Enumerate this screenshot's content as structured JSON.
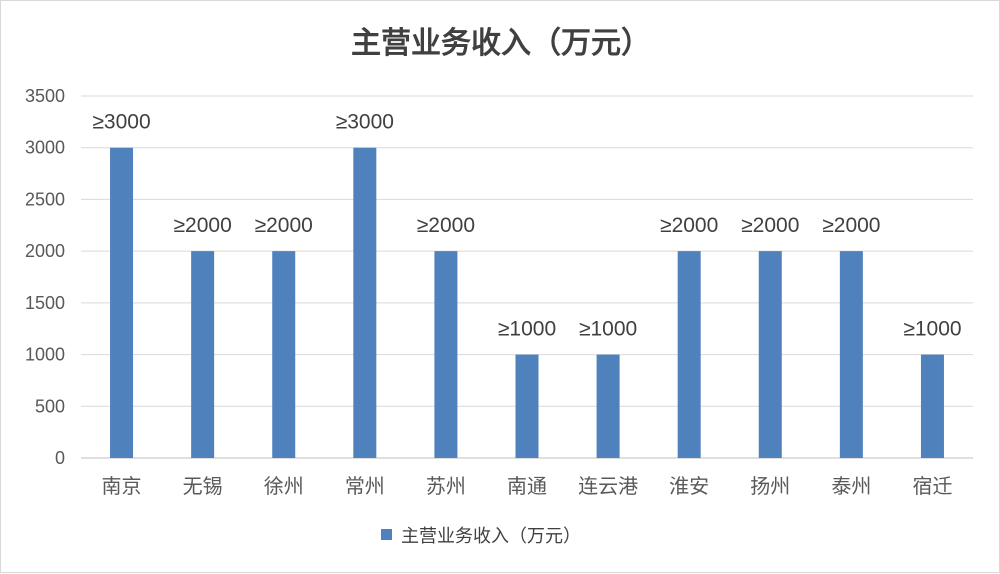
{
  "chart_data": {
    "type": "bar",
    "title": "主营业务收入（万元）",
    "categories": [
      "南京",
      "无锡",
      "徐州",
      "常州",
      "苏州",
      "南通",
      "连云港",
      "淮安",
      "扬州",
      "泰州",
      "宿迁"
    ],
    "series": [
      {
        "name": "主营业务收入（万元）",
        "values": [
          3000,
          2000,
          2000,
          3000,
          2000,
          1000,
          1000,
          2000,
          2000,
          2000,
          1000
        ],
        "data_labels": [
          "≥3000",
          "≥2000",
          "≥2000",
          "≥3000",
          "≥2000",
          "≥1000",
          "≥1000",
          "≥2000",
          "≥2000",
          "≥2000",
          "≥1000"
        ],
        "color": "#4f81bd"
      }
    ],
    "ylim": [
      0,
      3500
    ],
    "yticks": [
      0,
      500,
      1000,
      1500,
      2000,
      2500,
      3000,
      3500
    ],
    "grid": true,
    "legend_position": "bottom",
    "gridline_color": "#d9d9d9",
    "axis_color": "#bfbfbf"
  }
}
